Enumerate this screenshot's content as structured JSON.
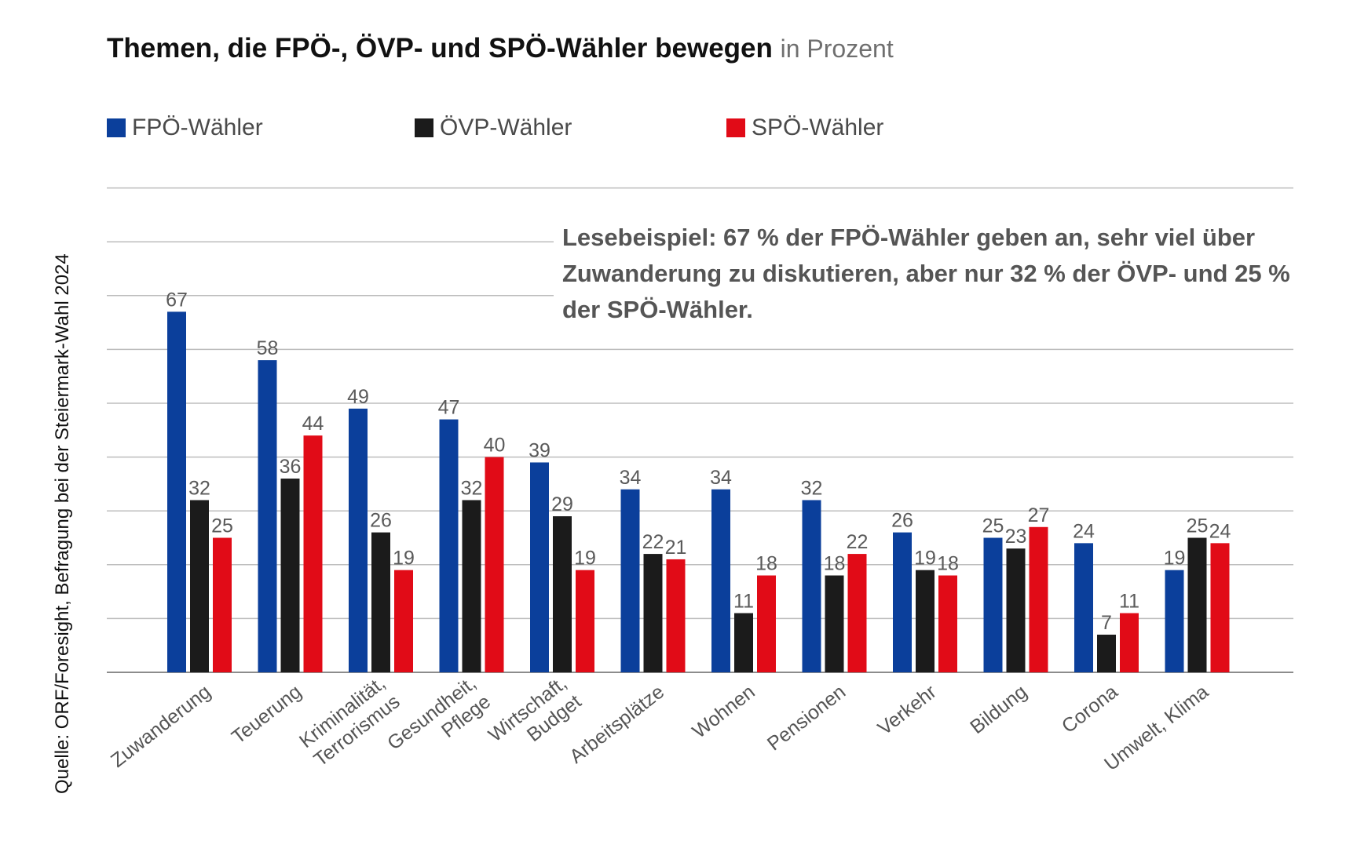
{
  "title": "Themen, die FPÖ-, ÖVP- und SPÖ-Wähler bewegen",
  "subtitle": "in Prozent",
  "source": "Quelle: ORF/Foresight, Befragung bei der Steiermark-Wahl 2024",
  "annotation": "Lesebeispiel: 67 % der FPÖ-Wähler geben an, sehr viel über Zuwanderung zu diskutieren, aber nur 32 % der ÖVP- und 25 % der SPÖ-Wähler.",
  "colors": {
    "fpo": "#0b3f9b",
    "ovp": "#1b1b1b",
    "spo": "#e10b17",
    "grid": "#bdbdbd",
    "axis": "#8c8c8c"
  },
  "chart_data": {
    "type": "bar",
    "title": "Themen, die FPÖ-, ÖVP- und SPÖ-Wähler bewegen",
    "subtitle": "in Prozent",
    "categories": [
      "Zuwanderung",
      "Teuerung",
      "Kriminalität,\nTerrorismus",
      "Gesundheit,\nPflege",
      "Wirtschaft,\nBudget",
      "Arbeitsplätze",
      "Wohnen",
      "Pensionen",
      "Verkehr",
      "Bildung",
      "Corona",
      "Umwelt, Klima"
    ],
    "series": [
      {
        "name": "FPÖ-Wähler",
        "values": [
          67,
          58,
          49,
          47,
          39,
          34,
          34,
          32,
          26,
          25,
          24,
          19
        ]
      },
      {
        "name": "ÖVP-Wähler",
        "values": [
          32,
          36,
          26,
          32,
          29,
          22,
          11,
          18,
          19,
          23,
          7,
          25
        ]
      },
      {
        "name": "SPÖ-Wähler",
        "values": [
          25,
          44,
          19,
          40,
          19,
          21,
          18,
          22,
          18,
          27,
          11,
          24
        ]
      }
    ],
    "ylim": [
      0,
      90
    ],
    "grid": true,
    "legend": "top-left",
    "xlabel": "",
    "ylabel": ""
  }
}
